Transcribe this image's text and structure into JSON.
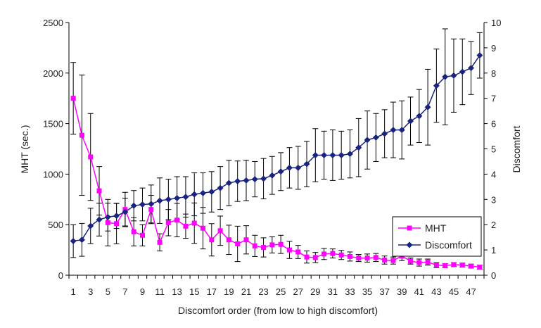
{
  "chart_data": {
    "type": "line",
    "xlabel": "Discomfort order (from low to high discomfort)",
    "ylabel": "MHT (sec.)",
    "y2label": "Discomfort",
    "x": [
      1,
      2,
      3,
      4,
      5,
      6,
      7,
      8,
      9,
      10,
      11,
      12,
      13,
      14,
      15,
      16,
      17,
      18,
      19,
      20,
      21,
      22,
      23,
      24,
      25,
      26,
      27,
      28,
      29,
      30,
      31,
      32,
      33,
      34,
      35,
      36,
      37,
      38,
      39,
      40,
      41,
      42,
      43,
      44,
      45,
      46,
      47,
      48
    ],
    "xticks": [
      "1",
      "3",
      "5",
      "7",
      "9",
      "11",
      "13",
      "15",
      "17",
      "19",
      "21",
      "23",
      "25",
      "27",
      "29",
      "31",
      "33",
      "35",
      "37",
      "39",
      "41",
      "43",
      "45",
      "47"
    ],
    "ylim": [
      0,
      2500
    ],
    "yticks": [
      "0",
      "500",
      "1000",
      "1500",
      "2000",
      "2500"
    ],
    "y2lim": [
      0,
      10
    ],
    "y2ticks": [
      "0",
      "1",
      "2",
      "3",
      "4",
      "5",
      "6",
      "7",
      "8",
      "9",
      "10"
    ],
    "legend_position": "bottom-right",
    "grid": false,
    "series": [
      {
        "name": "MHT",
        "axis": "left",
        "color": "#ff00ff",
        "marker": "square",
        "values": [
          1750,
          1385,
          1170,
          835,
          520,
          510,
          650,
          430,
          395,
          650,
          325,
          520,
          545,
          485,
          515,
          465,
          350,
          440,
          350,
          310,
          350,
          290,
          275,
          300,
          305,
          250,
          230,
          180,
          175,
          210,
          215,
          200,
          185,
          170,
          170,
          175,
          150,
          145,
          190,
          140,
          125,
          130,
          100,
          95,
          105,
          100,
          90,
          80
        ],
        "errors": [
          355,
          595,
          430,
          240,
          230,
          200,
          170,
          140,
          105,
          140,
          85,
          130,
          165,
          120,
          200,
          205,
          160,
          145,
          145,
          175,
          140,
          105,
          95,
          80,
          90,
          85,
          65,
          60,
          50,
          55,
          45,
          45,
          45,
          35,
          40,
          40,
          40,
          35,
          45,
          30,
          35,
          30,
          25,
          20,
          20,
          20,
          20,
          20
        ]
      },
      {
        "name": "Discomfort",
        "axis": "right",
        "color": "#1a237e",
        "marker": "diamond",
        "values": [
          1.35,
          1.4,
          1.95,
          2.2,
          2.3,
          2.35,
          2.5,
          2.75,
          2.8,
          2.82,
          2.95,
          3.0,
          3.05,
          3.1,
          3.2,
          3.25,
          3.3,
          3.45,
          3.65,
          3.72,
          3.75,
          3.8,
          3.82,
          3.95,
          4.1,
          4.25,
          4.25,
          4.4,
          4.75,
          4.75,
          4.75,
          4.75,
          4.8,
          5.05,
          5.35,
          5.45,
          5.6,
          5.75,
          5.75,
          6.1,
          6.3,
          6.65,
          7.5,
          7.85,
          7.9,
          8.05,
          8.2,
          8.7
        ],
        "errors": [
          0.65,
          0.65,
          0.7,
          0.65,
          0.55,
          0.5,
          0.55,
          0.6,
          0.65,
          0.75,
          0.9,
          0.8,
          0.85,
          0.8,
          0.85,
          0.8,
          0.8,
          0.85,
          0.9,
          0.8,
          0.8,
          0.7,
          0.8,
          0.75,
          0.75,
          0.8,
          0.85,
          0.9,
          1.05,
          0.95,
          1.0,
          0.95,
          0.95,
          1.15,
          1.15,
          0.95,
          0.95,
          1.1,
          1.15,
          0.95,
          1.05,
          1.5,
          1.45,
          1.9,
          1.45,
          1.3,
          1.05,
          0.9
        ]
      }
    ]
  }
}
